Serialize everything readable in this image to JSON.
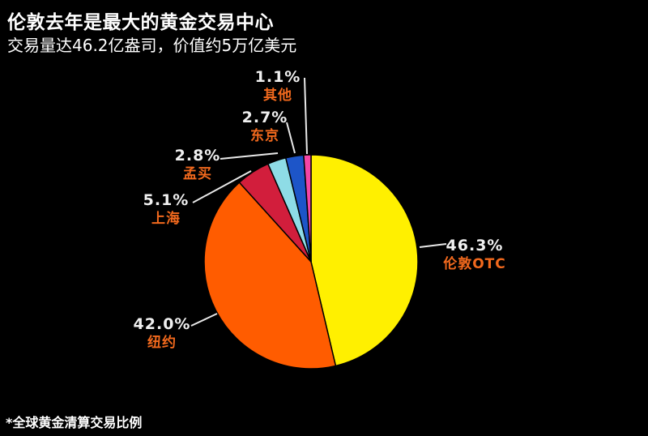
{
  "header": {
    "title": "伦敦去年是最大的黄金交易中心",
    "subtitle": "交易量达46.2亿盎司，价值约5万亿美元"
  },
  "footer": {
    "note": "*全球黄金清算交易比例"
  },
  "colors": {
    "background": "#000000",
    "title_text": "#ffffff",
    "percent_text": "#f0f0f0",
    "city_label_text": "#f2691d",
    "leader_line": "#e8e8e8",
    "slice_stroke": "#000000"
  },
  "chart_data": {
    "type": "pie",
    "title": "伦敦去年是最大的黄金交易中心",
    "subtitle": "交易量达46.2亿盎司，价值约5万亿美元",
    "footnote": "*全球黄金清算交易比例",
    "unit": "%",
    "start_angle": "12 o'clock",
    "direction": "clockwise",
    "total": 100.0,
    "slices": [
      {
        "name": "伦敦OTC",
        "pct": 46.3,
        "pct_label": "46.3%",
        "color": "#FFF000"
      },
      {
        "name": "纽约",
        "pct": 42.0,
        "pct_label": "42.0%",
        "color": "#FF5C00"
      },
      {
        "name": "上海",
        "pct": 5.1,
        "pct_label": "5.1%",
        "color": "#D21E3C"
      },
      {
        "name": "孟买",
        "pct": 2.8,
        "pct_label": "2.8%",
        "color": "#8EDCE6"
      },
      {
        "name": "东京",
        "pct": 2.7,
        "pct_label": "2.7%",
        "color": "#1D55C8"
      },
      {
        "name": "其他",
        "pct": 1.1,
        "pct_label": "1.1%",
        "color": "#F445A5"
      }
    ]
  }
}
